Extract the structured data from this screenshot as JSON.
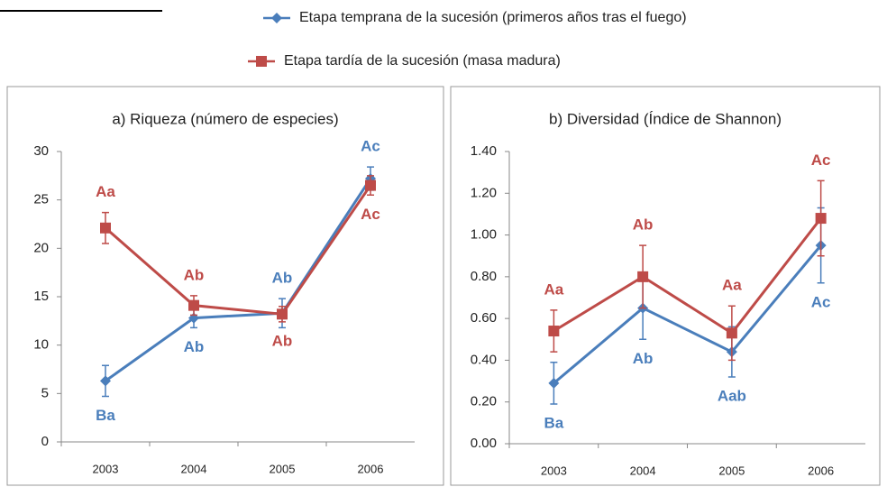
{
  "chart_data": [
    {
      "type": "line",
      "title": "a) Riqueza (número de especies)",
      "categories": [
        "2003",
        "2004",
        "2005",
        "2006"
      ],
      "ylim": [
        0,
        30
      ],
      "yticks": [
        0,
        5,
        10,
        15,
        20,
        25,
        30
      ],
      "series": [
        {
          "name": "Etapa temprana  de la sucesión (primeros años tras el fuego)",
          "color": "#4a7ebb",
          "marker": "diamond",
          "values": [
            6.3,
            12.8,
            13.3,
            27.2
          ],
          "errors": [
            1.6,
            1.0,
            1.5,
            1.2
          ],
          "point_labels": [
            "Ba",
            "Ab",
            "Ab",
            "Ac"
          ]
        },
        {
          "name": "Etapa tardía de la sucesión (masa madura)",
          "color": "#be4b48",
          "marker": "square",
          "values": [
            22.1,
            14.1,
            13.2,
            26.5
          ],
          "errors": [
            1.6,
            1.0,
            0.8,
            1.0
          ],
          "point_labels": [
            "Aa",
            "Ab",
            "Ab",
            "Ac"
          ]
        }
      ]
    },
    {
      "type": "line",
      "title": "b) Diversidad (Índice de Shannon)",
      "categories": [
        "2003",
        "2004",
        "2005",
        "2006"
      ],
      "ylim": [
        0,
        1.4
      ],
      "yticks": [
        {
          "value": 0,
          "label": "0.00"
        },
        {
          "value": 0.2,
          "label": "0.20"
        },
        {
          "value": 0.4,
          "label": "0.40"
        },
        {
          "value": 0.6,
          "label": "0.60"
        },
        {
          "value": 0.8,
          "label": "0.80"
        },
        {
          "value": 1.0,
          "label": "1.00"
        },
        {
          "value": 1.2,
          "label": "1.20"
        },
        {
          "value": 1.4,
          "label": "1.40"
        }
      ],
      "series": [
        {
          "color": "#4a7ebb",
          "marker": "diamond",
          "values": [
            0.29,
            0.65,
            0.44,
            0.95
          ],
          "errors": [
            0.1,
            0.15,
            0.12,
            0.18
          ],
          "point_labels": [
            "Ba",
            "Ab",
            "Aab",
            "Ac"
          ]
        },
        {
          "color": "#be4b48",
          "marker": "square",
          "values": [
            0.54,
            0.8,
            0.53,
            1.08
          ],
          "errors": [
            0.1,
            0.15,
            0.13,
            0.18
          ],
          "point_labels": [
            "Aa",
            "Ab",
            "Aa",
            "Ac"
          ]
        }
      ]
    }
  ]
}
